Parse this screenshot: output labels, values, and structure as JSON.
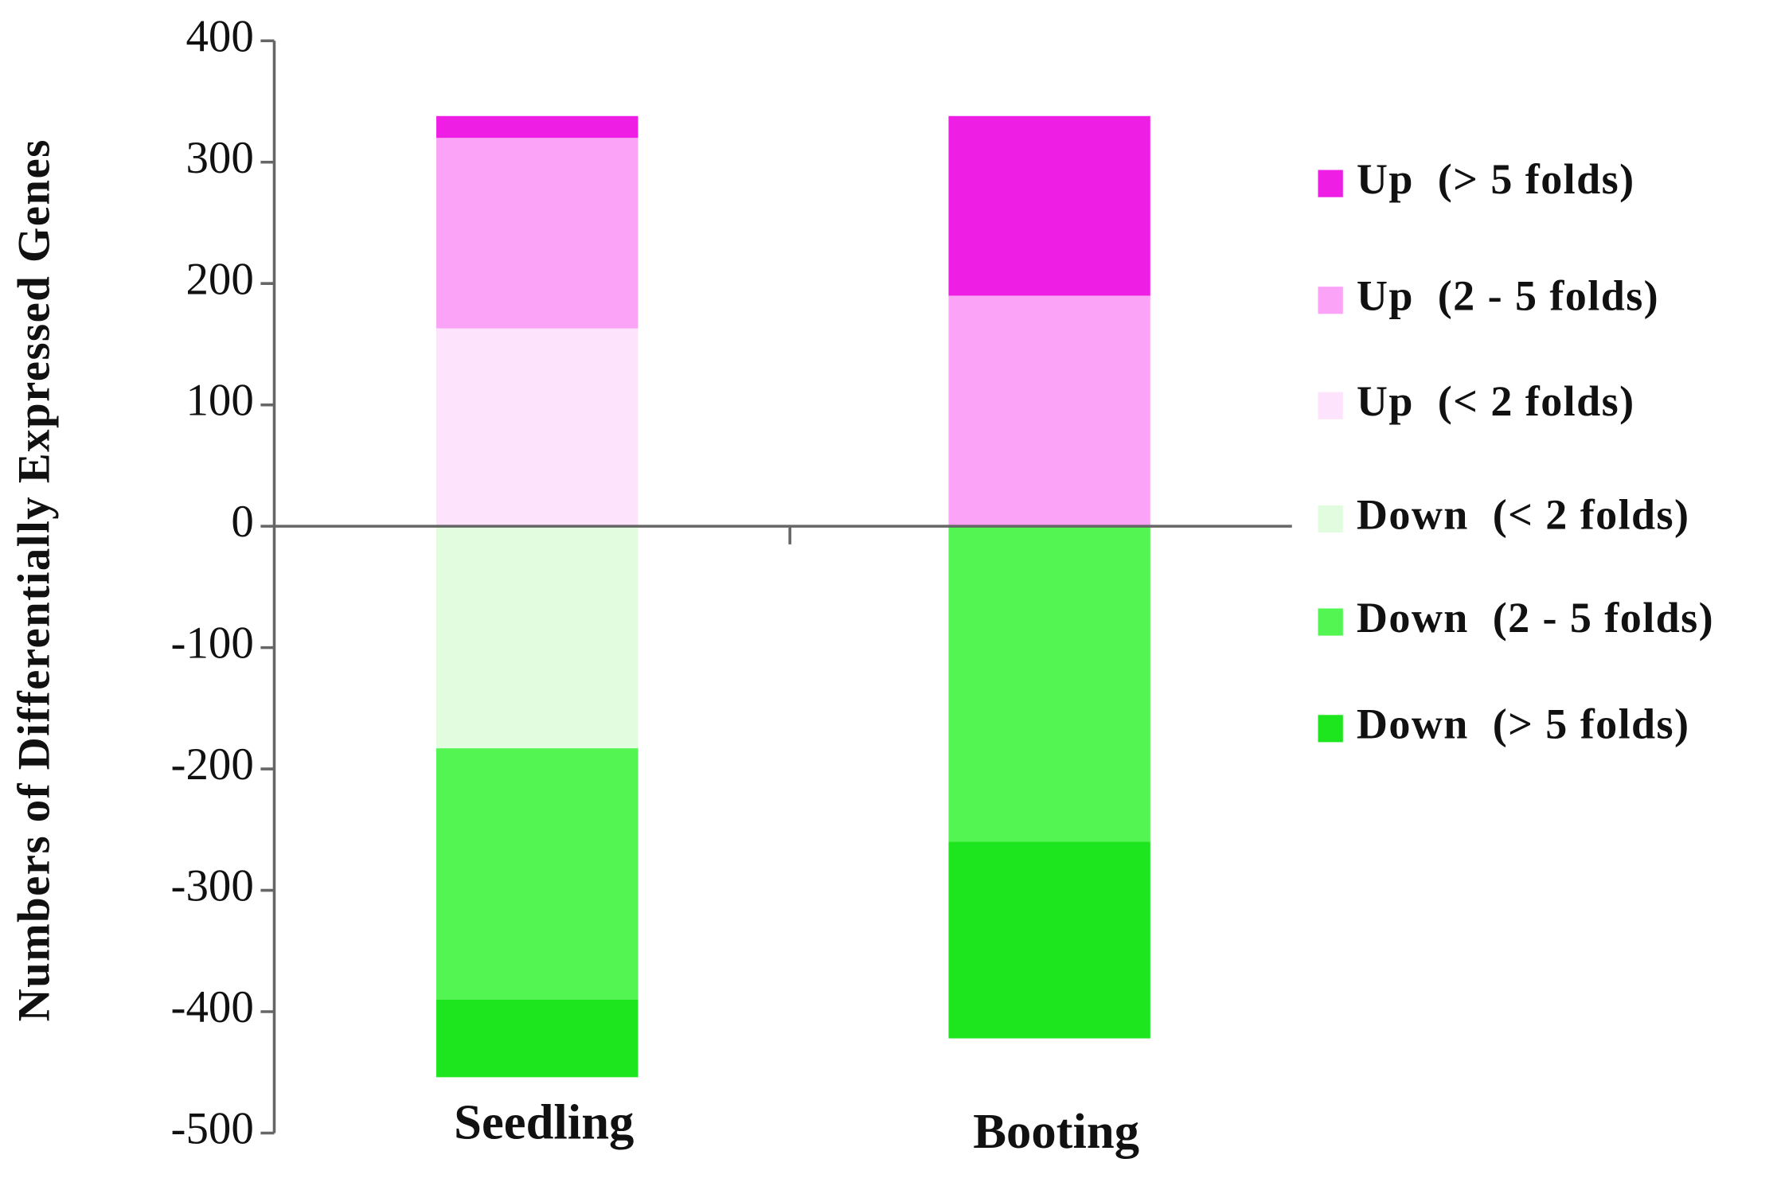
{
  "chart_data": {
    "type": "bar",
    "stacked": true,
    "y_label": "Numbers of Differentially Expressed Genes",
    "categories": [
      "Seedling",
      "Booting"
    ],
    "series": [
      {
        "name": "Up  (> 5 folds)",
        "color": "#ee1ee4",
        "values": [
          18,
          148
        ]
      },
      {
        "name": "Up  (2 - 5 folds)",
        "color": "#fba3f6",
        "values": [
          157,
          190
        ]
      },
      {
        "name": "Up  (< 2 folds)",
        "color": "#fde3fb",
        "values": [
          163,
          0
        ]
      },
      {
        "name": "Down  (< 2 folds)",
        "color": "#e2fcdf",
        "values": [
          -183,
          0
        ]
      },
      {
        "name": "Down  (2 - 5 folds)",
        "color": "#52f552",
        "values": [
          -207,
          -260
        ]
      },
      {
        "name": "Down  (> 5 folds)",
        "color": "#1ee61e",
        "values": [
          -64,
          -162
        ]
      }
    ],
    "ylim": [
      -500,
      400
    ],
    "yticks": [
      -500,
      -400,
      -300,
      -200,
      -100,
      0,
      100,
      200,
      300,
      400
    ],
    "grid": false,
    "legend": "right"
  }
}
